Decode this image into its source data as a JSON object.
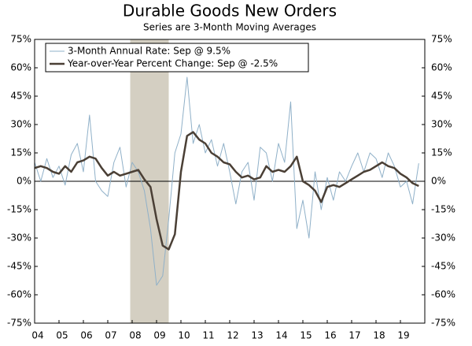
{
  "chart_data": {
    "type": "line",
    "title": "Durable Goods New Orders",
    "subtitle": "Series are 3-Month Moving Averages",
    "x": [
      2004,
      2004.25,
      2004.5,
      2004.75,
      2005,
      2005.25,
      2005.5,
      2005.75,
      2006,
      2006.25,
      2006.5,
      2006.75,
      2007,
      2007.25,
      2007.5,
      2007.75,
      2008,
      2008.25,
      2008.5,
      2008.75,
      2009,
      2009.25,
      2009.5,
      2009.75,
      2010,
      2010.25,
      2010.5,
      2010.75,
      2011,
      2011.25,
      2011.5,
      2011.75,
      2012,
      2012.25,
      2012.5,
      2012.75,
      2013,
      2013.25,
      2013.5,
      2013.75,
      2014,
      2014.25,
      2014.5,
      2014.75,
      2015,
      2015.25,
      2015.5,
      2015.75,
      2016,
      2016.25,
      2016.5,
      2016.75,
      2017,
      2017.25,
      2017.5,
      2017.75,
      2018,
      2018.25,
      2018.5,
      2018.75,
      2019,
      2019.25,
      2019.5,
      2019.75
    ],
    "series": [
      {
        "name": "3-Month Annual Rate: Sep @ 9.5%",
        "color": "#8fb0c8",
        "width": 1,
        "values": [
          10,
          0,
          12,
          2,
          8,
          -2,
          14,
          20,
          5,
          35,
          0,
          -5,
          -8,
          10,
          18,
          -3,
          10,
          5,
          -5,
          -25,
          -55,
          -50,
          -20,
          15,
          25,
          55,
          20,
          30,
          15,
          22,
          8,
          20,
          5,
          -12,
          5,
          10,
          -10,
          18,
          15,
          0,
          20,
          10,
          42,
          -25,
          -10,
          -30,
          5,
          -15,
          2,
          -10,
          5,
          0,
          8,
          15,
          5,
          15,
          12,
          2,
          15,
          8,
          -3,
          0,
          -12,
          9.5
        ]
      },
      {
        "name": "Year-over-Year Percent Change: Sep @ -2.5%",
        "color": "#4a3f35",
        "width": 2.5,
        "values": [
          7,
          8,
          7,
          5,
          4,
          8,
          5,
          10,
          11,
          13,
          12,
          7,
          3,
          5,
          3,
          4,
          5,
          6,
          1,
          -3,
          -20,
          -34,
          -36,
          -28,
          5,
          24,
          26,
          22,
          20,
          15,
          13,
          10,
          9,
          5,
          2,
          3,
          1,
          2,
          8,
          5,
          6,
          5,
          8,
          13,
          0,
          -2,
          -5,
          -11,
          -3,
          -2,
          -3,
          -1,
          1,
          3,
          5,
          6,
          8,
          10,
          8,
          7,
          4,
          2,
          -1,
          -2.5
        ]
      }
    ],
    "shaded_range": [
      2007.92,
      2009.5
    ],
    "shade_color": "#d4cfc2",
    "xlim": [
      2004,
      2020
    ],
    "xticks": [
      {
        "value": 2004,
        "label": "04"
      },
      {
        "value": 2005,
        "label": "05"
      },
      {
        "value": 2006,
        "label": "06"
      },
      {
        "value": 2007,
        "label": "07"
      },
      {
        "value": 2008,
        "label": "08"
      },
      {
        "value": 2009,
        "label": "09"
      },
      {
        "value": 2010,
        "label": "10"
      },
      {
        "value": 2011,
        "label": "11"
      },
      {
        "value": 2012,
        "label": "12"
      },
      {
        "value": 2013,
        "label": "13"
      },
      {
        "value": 2014,
        "label": "14"
      },
      {
        "value": 2015,
        "label": "15"
      },
      {
        "value": 2016,
        "label": "16"
      },
      {
        "value": 2017,
        "label": "17"
      },
      {
        "value": 2018,
        "label": "18"
      },
      {
        "value": 2019,
        "label": "19"
      }
    ],
    "ylim": [
      -75,
      75
    ],
    "yticks": [
      {
        "value": -75,
        "label": "-75%"
      },
      {
        "value": -60,
        "label": "-60%"
      },
      {
        "value": -45,
        "label": "-45%"
      },
      {
        "value": -30,
        "label": "-30%"
      },
      {
        "value": -15,
        "label": "-15%"
      },
      {
        "value": 0,
        "label": "0%"
      },
      {
        "value": 15,
        "label": "15%"
      },
      {
        "value": 30,
        "label": "30%"
      },
      {
        "value": 45,
        "label": "45%"
      },
      {
        "value": 60,
        "label": "60%"
      },
      {
        "value": 75,
        "label": "75%"
      }
    ],
    "legend": "upper-left"
  }
}
